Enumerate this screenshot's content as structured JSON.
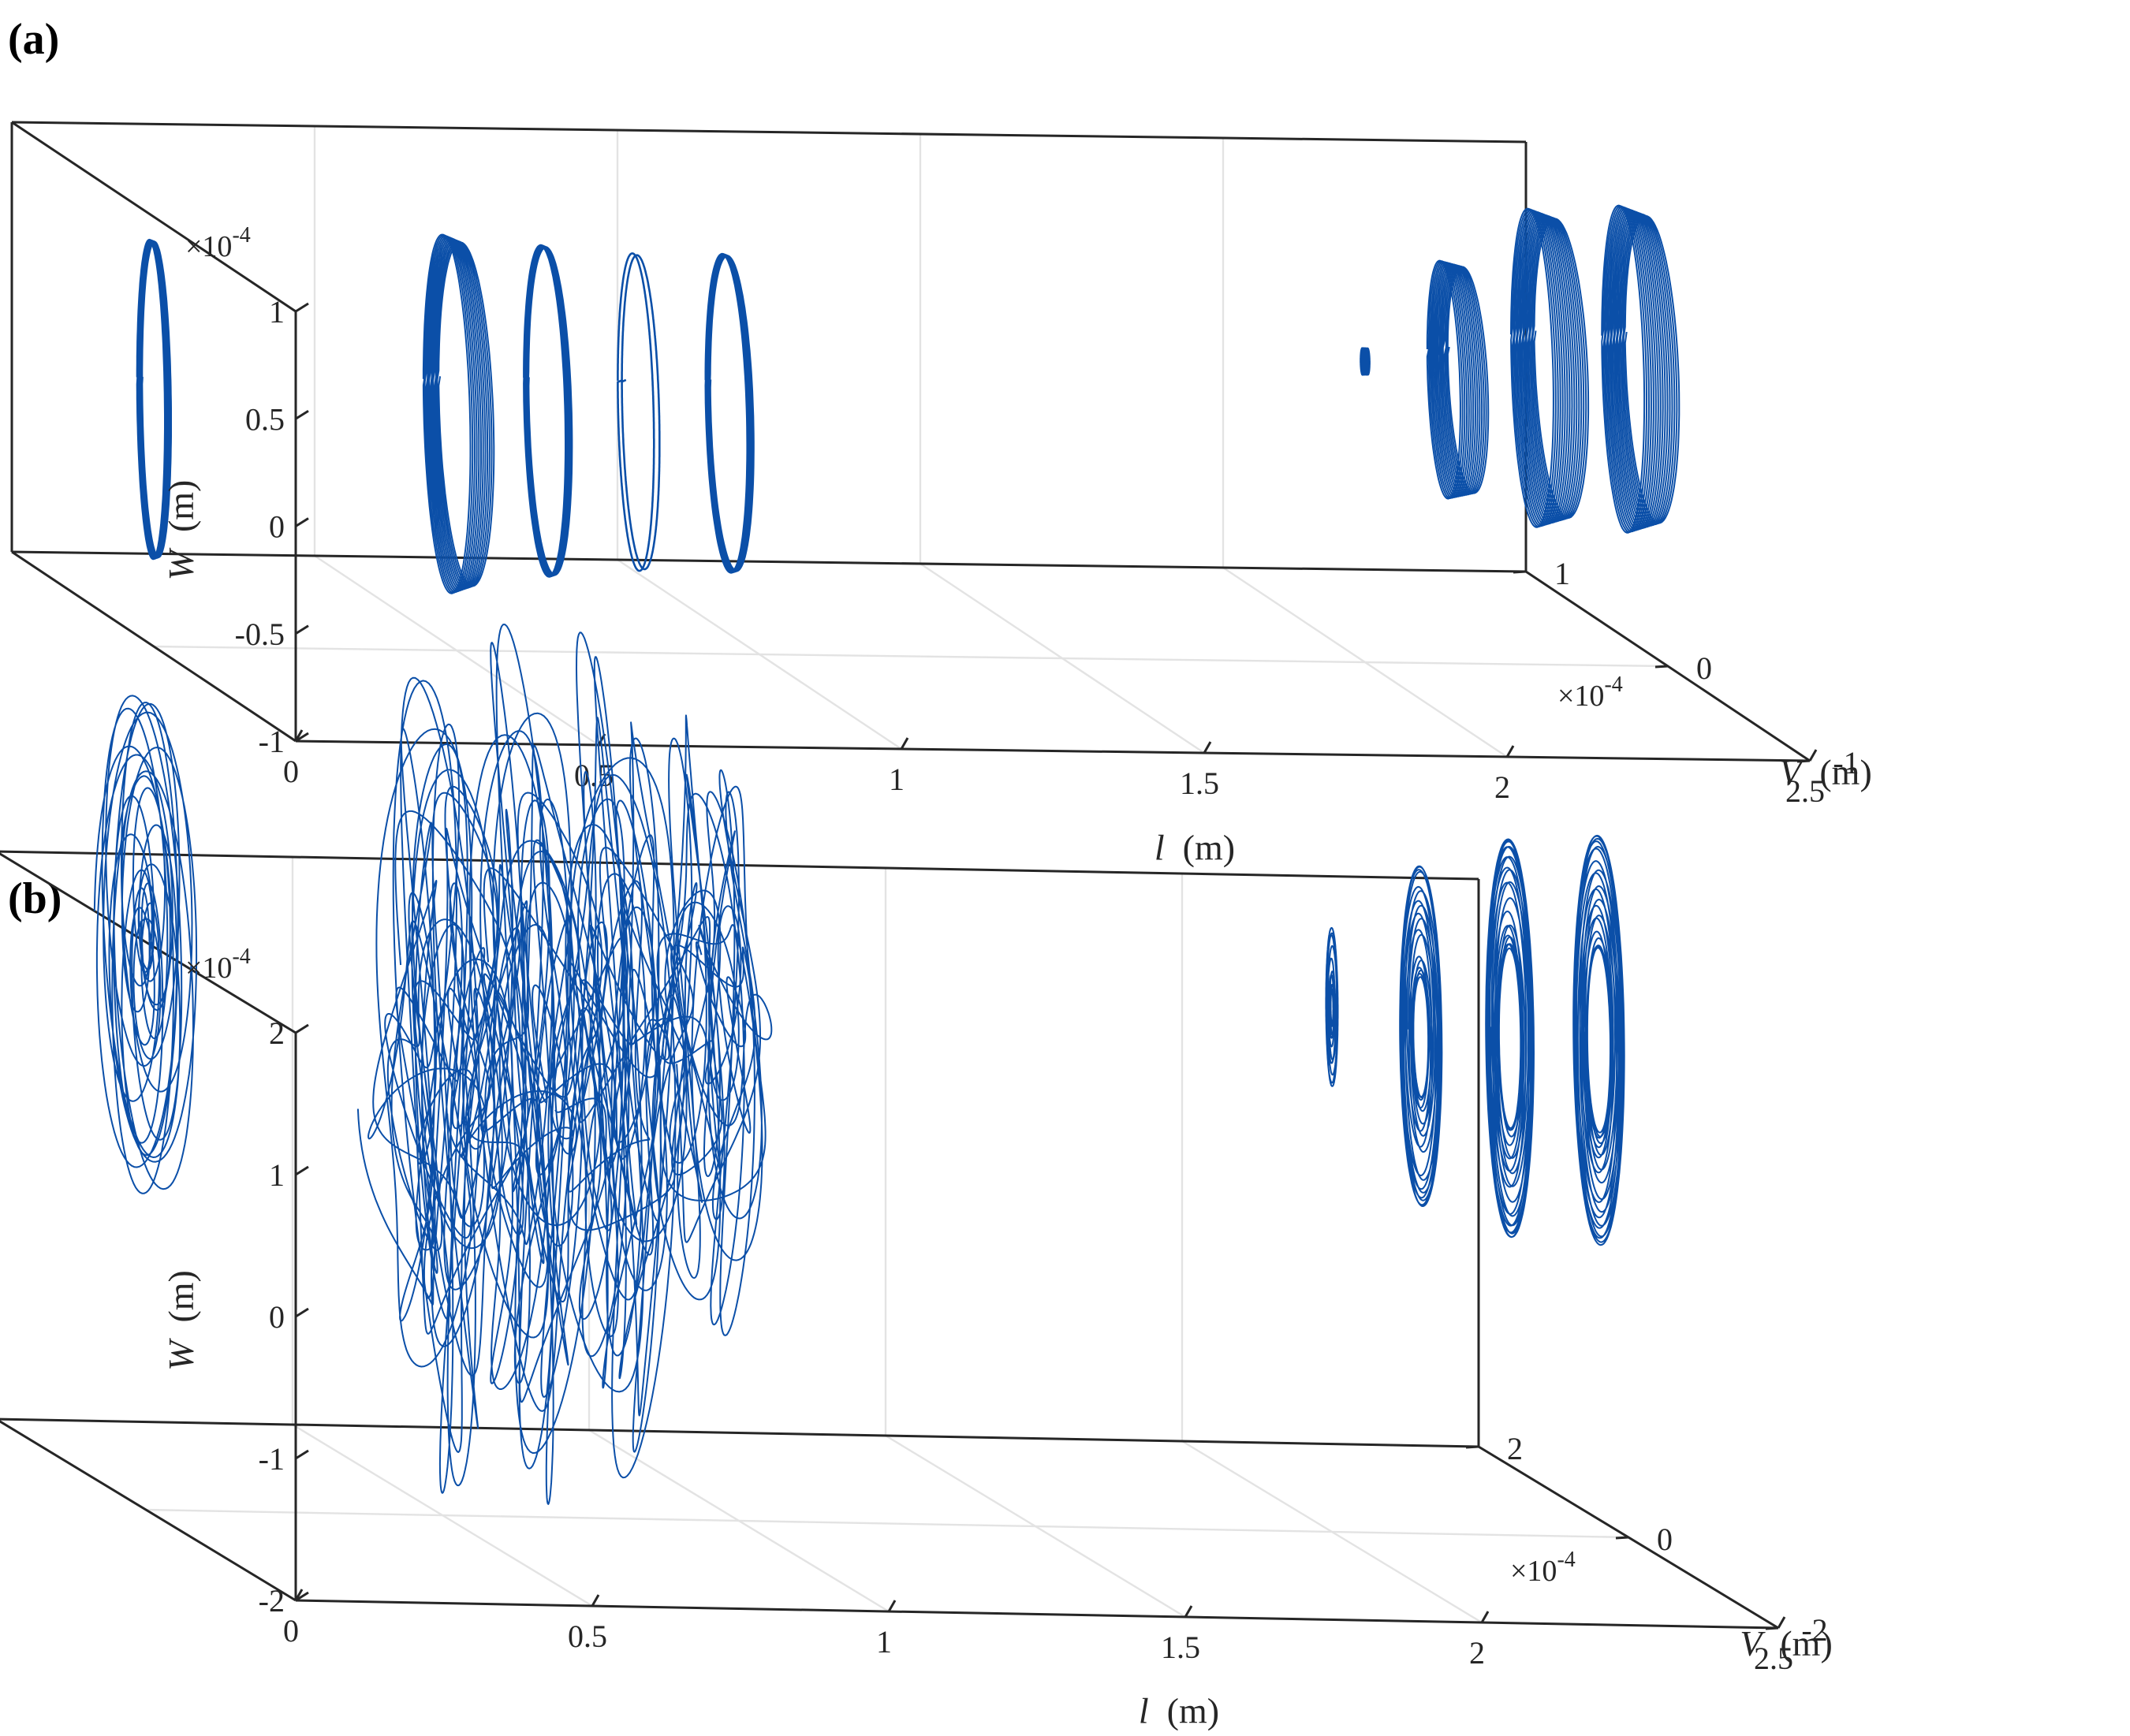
{
  "figure": {
    "line_color": "#0b4fa8",
    "axis_color": "#262626",
    "grid_color": "#e3e3e3",
    "background": "#ffffff"
  },
  "chart_data": [
    {
      "type": "scatter",
      "style": "3d-line-plot",
      "panel_label": "(a)",
      "xlabel": "l (m)",
      "ylabel": "V (m)",
      "zlabel": "W (m)",
      "x_ticks": [
        "0",
        "0.5",
        "1",
        "1.5",
        "2",
        "2.5"
      ],
      "x_tick_values": [
        0,
        0.5,
        1,
        1.5,
        2,
        2.5
      ],
      "xlim": [
        0,
        2.5
      ],
      "y_ticks": [
        "-1",
        "0",
        "1"
      ],
      "y_tick_values": [
        -1,
        0,
        1
      ],
      "ylim": [
        -1,
        1
      ],
      "y_multiplier": "×10-4",
      "z_ticks": [
        "-1",
        "-0.5",
        "0",
        "0.5",
        "1"
      ],
      "z_tick_values": [
        -1,
        -0.5,
        0,
        0.5,
        1
      ],
      "zlim": [
        -1,
        1
      ],
      "z_multiplier": "×10-4",
      "grid": true,
      "legend": "none",
      "series": [
        {
          "l": 0.0,
          "v_amp": 0.1,
          "w_center": 0.15,
          "w_amp": 0.73,
          "tilt": 0.1,
          "loops": 10,
          "loop_spread": 0.02,
          "kind": "dense"
        },
        {
          "l": 0.5,
          "v_amp": 0.18,
          "w_center": 0.1,
          "w_amp": 0.8,
          "tilt": 0.15,
          "loops": 12,
          "loop_spread": 0.08,
          "kind": "mesh"
        },
        {
          "l": 0.65,
          "v_amp": 0.15,
          "w_center": 0.12,
          "w_amp": 0.75,
          "tilt": 0.15,
          "loops": 12,
          "loop_spread": 0.02,
          "kind": "dense"
        },
        {
          "l": 0.8,
          "v_amp": 0.13,
          "w_center": 0.12,
          "w_amp": 0.72,
          "tilt": 0.15,
          "loops": 2,
          "loop_spread": 0.02,
          "kind": "thin"
        },
        {
          "l": 0.95,
          "v_amp": 0.15,
          "w_center": 0.12,
          "w_amp": 0.72,
          "tilt": 0.15,
          "loops": 12,
          "loop_spread": 0.02,
          "kind": "dense"
        },
        {
          "l": 2.0,
          "v_amp": 0.012,
          "w_center": 0.4,
          "w_amp": 0.06,
          "tilt": 0.0,
          "loops": 4,
          "loop_spread": 0.02,
          "kind": "dense"
        },
        {
          "l": 2.15,
          "v_amp": 0.13,
          "w_center": 0.32,
          "w_amp": 0.52,
          "tilt": 0.15,
          "loops": 14,
          "loop_spread": 0.1,
          "kind": "mesh"
        },
        {
          "l": 2.3,
          "v_amp": 0.17,
          "w_center": 0.38,
          "w_amp": 0.7,
          "tilt": 0.15,
          "loops": 16,
          "loop_spread": 0.12,
          "kind": "mesh"
        },
        {
          "l": 2.45,
          "v_amp": 0.17,
          "w_center": 0.38,
          "w_amp": 0.72,
          "tilt": 0.15,
          "loops": 16,
          "loop_spread": 0.12,
          "kind": "mesh"
        }
      ]
    },
    {
      "type": "scatter",
      "style": "3d-line-plot",
      "panel_label": "(b)",
      "xlabel": "l (m)",
      "ylabel": "V (m)",
      "zlabel": "W (m)",
      "x_ticks": [
        "0",
        "0.5",
        "1",
        "1.5",
        "2",
        "2.5"
      ],
      "x_tick_values": [
        0,
        0.5,
        1,
        1.5,
        2,
        2.5
      ],
      "xlim": [
        0,
        2.5
      ],
      "y_ticks": [
        "-2",
        "0",
        "2"
      ],
      "y_tick_values": [
        -2,
        0,
        2
      ],
      "ylim": [
        -2,
        2
      ],
      "y_multiplier": "×10-4",
      "z_ticks": [
        "-2",
        "-1",
        "0",
        "1",
        "2"
      ],
      "z_tick_values": [
        -2,
        -1,
        0,
        1,
        2
      ],
      "zlim": [
        -2,
        2
      ],
      "z_multiplier": "×10-4",
      "grid": true,
      "legend": "none",
      "series": [
        {
          "l": 0.0,
          "v_amp": 0.35,
          "w_center": 1.0,
          "w_amp": 0.9,
          "kind": "rosette",
          "petals": 18
        },
        {
          "l": 0.5,
          "v_amp": 0.3,
          "w_center": 0.55,
          "w_amp": 1.2,
          "kind": "chaotic",
          "loops": 22
        },
        {
          "l": 0.65,
          "v_amp": 0.3,
          "w_center": 0.55,
          "w_amp": 1.25,
          "kind": "chaotic",
          "loops": 22
        },
        {
          "l": 0.8,
          "v_amp": 0.28,
          "w_center": 0.6,
          "w_amp": 1.2,
          "kind": "chaotic",
          "loops": 22
        },
        {
          "l": 0.95,
          "v_amp": 0.25,
          "w_center": 0.75,
          "w_amp": 0.9,
          "kind": "chaotic",
          "loops": 18
        },
        {
          "l": 2.0,
          "v_amp": 0.04,
          "w_center": 0.85,
          "w_amp": 0.28,
          "kind": "blob",
          "loops": 10,
          "hole": 0.2
        },
        {
          "l": 2.15,
          "v_amp": 0.14,
          "w_center": 0.75,
          "w_amp": 0.6,
          "kind": "blob",
          "loops": 18,
          "hole": 0.35
        },
        {
          "l": 2.3,
          "v_amp": 0.16,
          "w_center": 0.75,
          "w_amp": 0.7,
          "kind": "blob",
          "loops": 20,
          "hole": 0.45
        },
        {
          "l": 2.45,
          "v_amp": 0.17,
          "w_center": 0.75,
          "w_amp": 0.72,
          "kind": "blob",
          "loops": 20,
          "hole": 0.45
        }
      ]
    }
  ]
}
